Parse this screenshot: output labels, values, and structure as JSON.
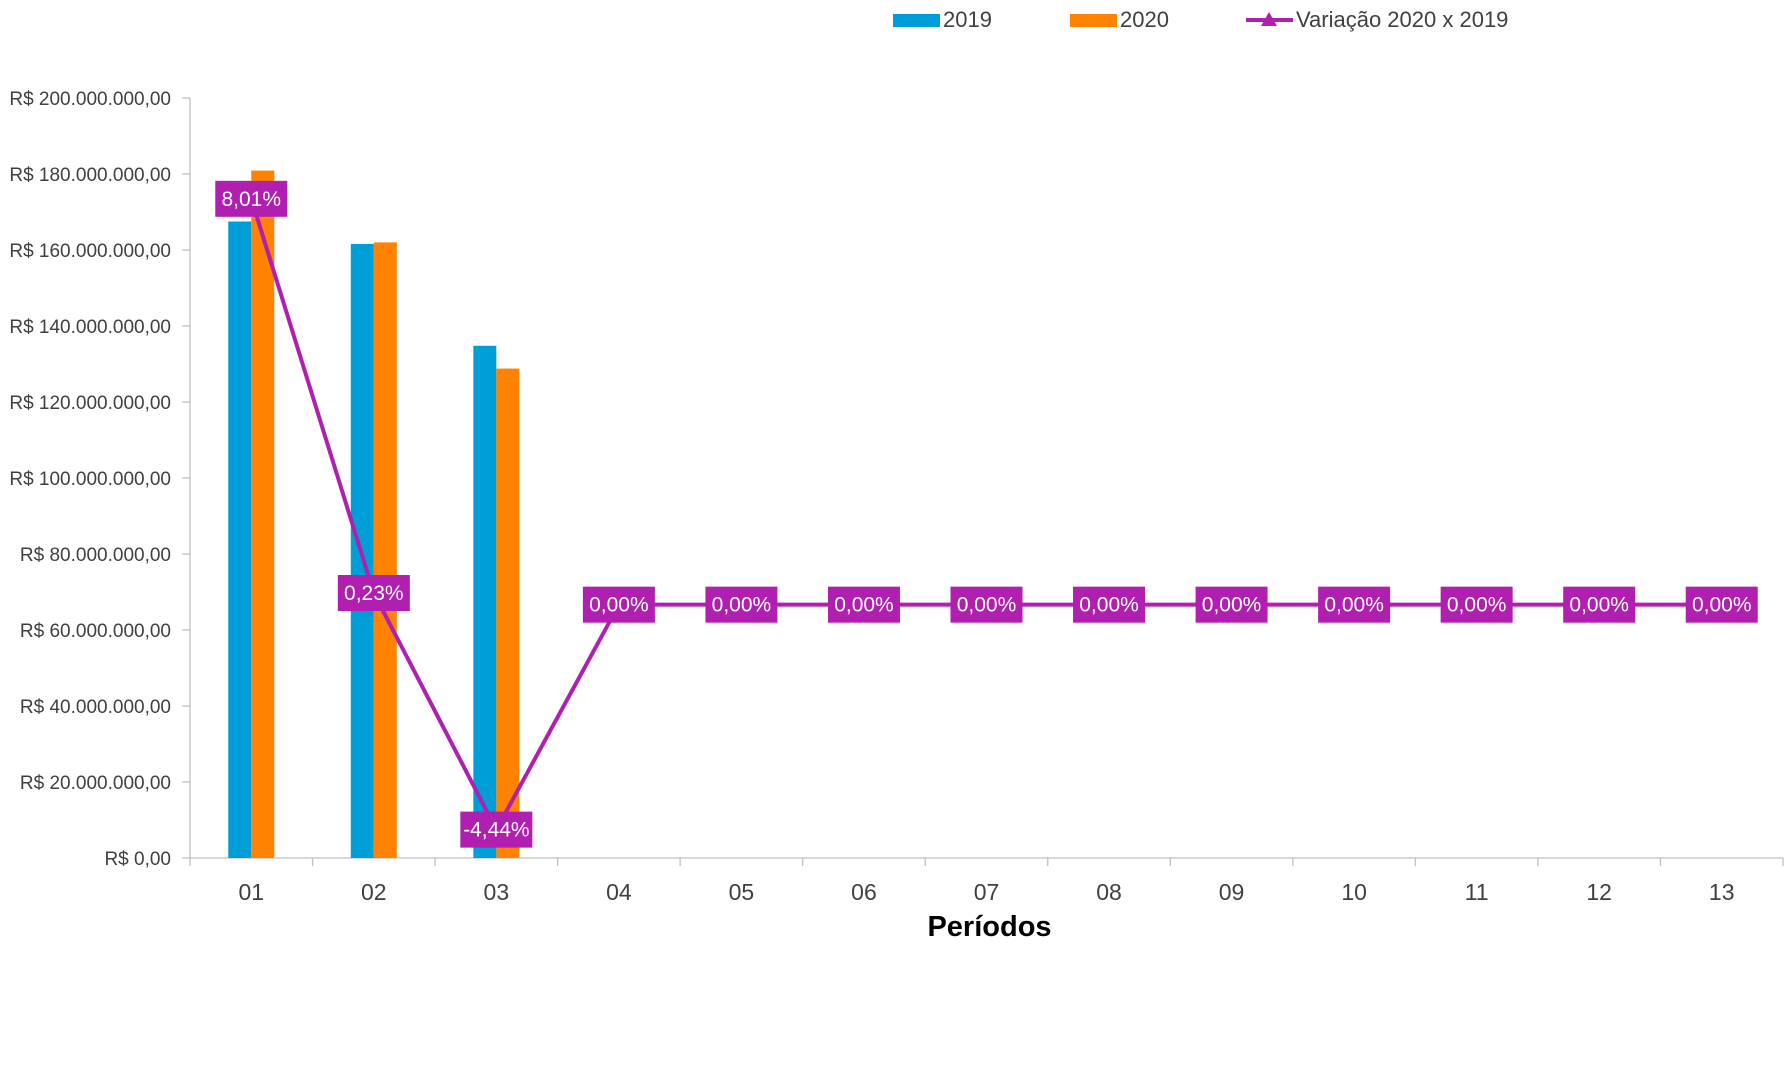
{
  "chart_data": {
    "type": "bar",
    "categories": [
      "01",
      "02",
      "03",
      "04",
      "05",
      "06",
      "07",
      "08",
      "09",
      "10",
      "11",
      "12",
      "13"
    ],
    "series": [
      {
        "name": "2019",
        "type": "bar",
        "axis": "left",
        "color": "#009ED8",
        "values": [
          167500000,
          161600000,
          134800000,
          null,
          null,
          null,
          null,
          null,
          null,
          null,
          null,
          null,
          null
        ]
      },
      {
        "name": "2020",
        "type": "bar",
        "axis": "left",
        "color": "#FF8200",
        "values": [
          180900000,
          162000000,
          128800000,
          null,
          null,
          null,
          null,
          null,
          null,
          null,
          null,
          null,
          null
        ]
      },
      {
        "name": "Variação 2020 x 2019",
        "type": "line",
        "axis": "right",
        "color": "#B01FB0",
        "marker": "triangle",
        "values": [
          0.0801,
          0.0023,
          -0.0444,
          0,
          0,
          0,
          0,
          0,
          0,
          0,
          0,
          0,
          0
        ],
        "labels": [
          "8,01%",
          "0,23%",
          "-4,44%",
          "0,00%",
          "0,00%",
          "0,00%",
          "0,00%",
          "0,00%",
          "0,00%",
          "0,00%",
          "0,00%",
          "0,00%",
          "0,00%"
        ]
      }
    ],
    "xlabel": "Períodos",
    "ylabel": "",
    "ylim": [
      0,
      200000000
    ],
    "y2lim": [
      -0.05,
      0.1
    ],
    "yticks": [
      0,
      20000000,
      40000000,
      60000000,
      80000000,
      100000000,
      120000000,
      140000000,
      160000000,
      180000000,
      200000000
    ],
    "ytick_labels": [
      "R$ 0,00",
      "R$ 20.000.000,00",
      "R$ 40.000.000,00",
      "R$ 60.000.000,00",
      "R$ 80.000.000,00",
      "R$ 100.000.000,00",
      "R$ 120.000.000,00",
      "R$ 140.000.000,00",
      "R$ 160.000.000,00",
      "R$ 180.000.000,00",
      "R$ 200.000.000,00"
    ],
    "grid": false,
    "legend_position": "top-right"
  }
}
